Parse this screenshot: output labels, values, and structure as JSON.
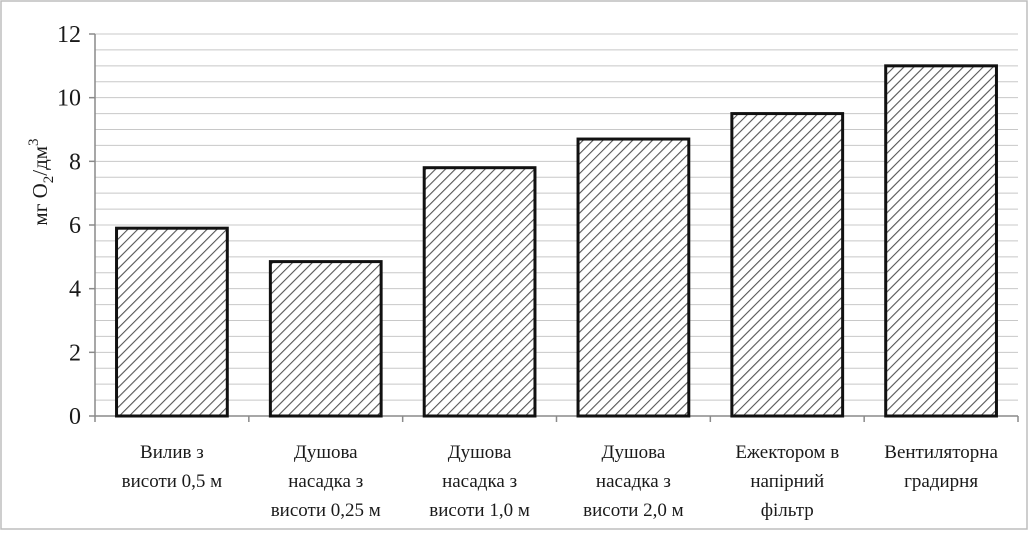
{
  "chart_data": {
    "type": "bar",
    "categories": [
      [
        "Вилив з",
        "висоти 0,5 м"
      ],
      [
        "Душова",
        "насадка з",
        "висоти 0,25 м"
      ],
      [
        "Душова",
        "насадка з",
        "висоти 1,0 м"
      ],
      [
        "Душова",
        "насадка з",
        "висоти 2,0 м"
      ],
      [
        "Ежектором в",
        "напірний",
        "фільтр"
      ],
      [
        "Вентиляторна",
        "градирня"
      ]
    ],
    "values": [
      5.9,
      4.85,
      7.8,
      8.7,
      9.5,
      11.0
    ],
    "ylabel": {
      "main": "мг О",
      "sub": "2",
      "mid": "/дм",
      "sup": "3"
    },
    "ylim": [
      0,
      12
    ],
    "yticks": [
      0,
      2,
      4,
      6,
      8,
      10,
      12
    ],
    "grid": true,
    "legend": "none",
    "bar_fill": "hatched",
    "colors": {
      "bar_stroke": "#111111",
      "hatch": "#555555",
      "grid": "#c8c8c8",
      "axis": "#8a8a8a",
      "frame": "#bdbdbd"
    }
  }
}
